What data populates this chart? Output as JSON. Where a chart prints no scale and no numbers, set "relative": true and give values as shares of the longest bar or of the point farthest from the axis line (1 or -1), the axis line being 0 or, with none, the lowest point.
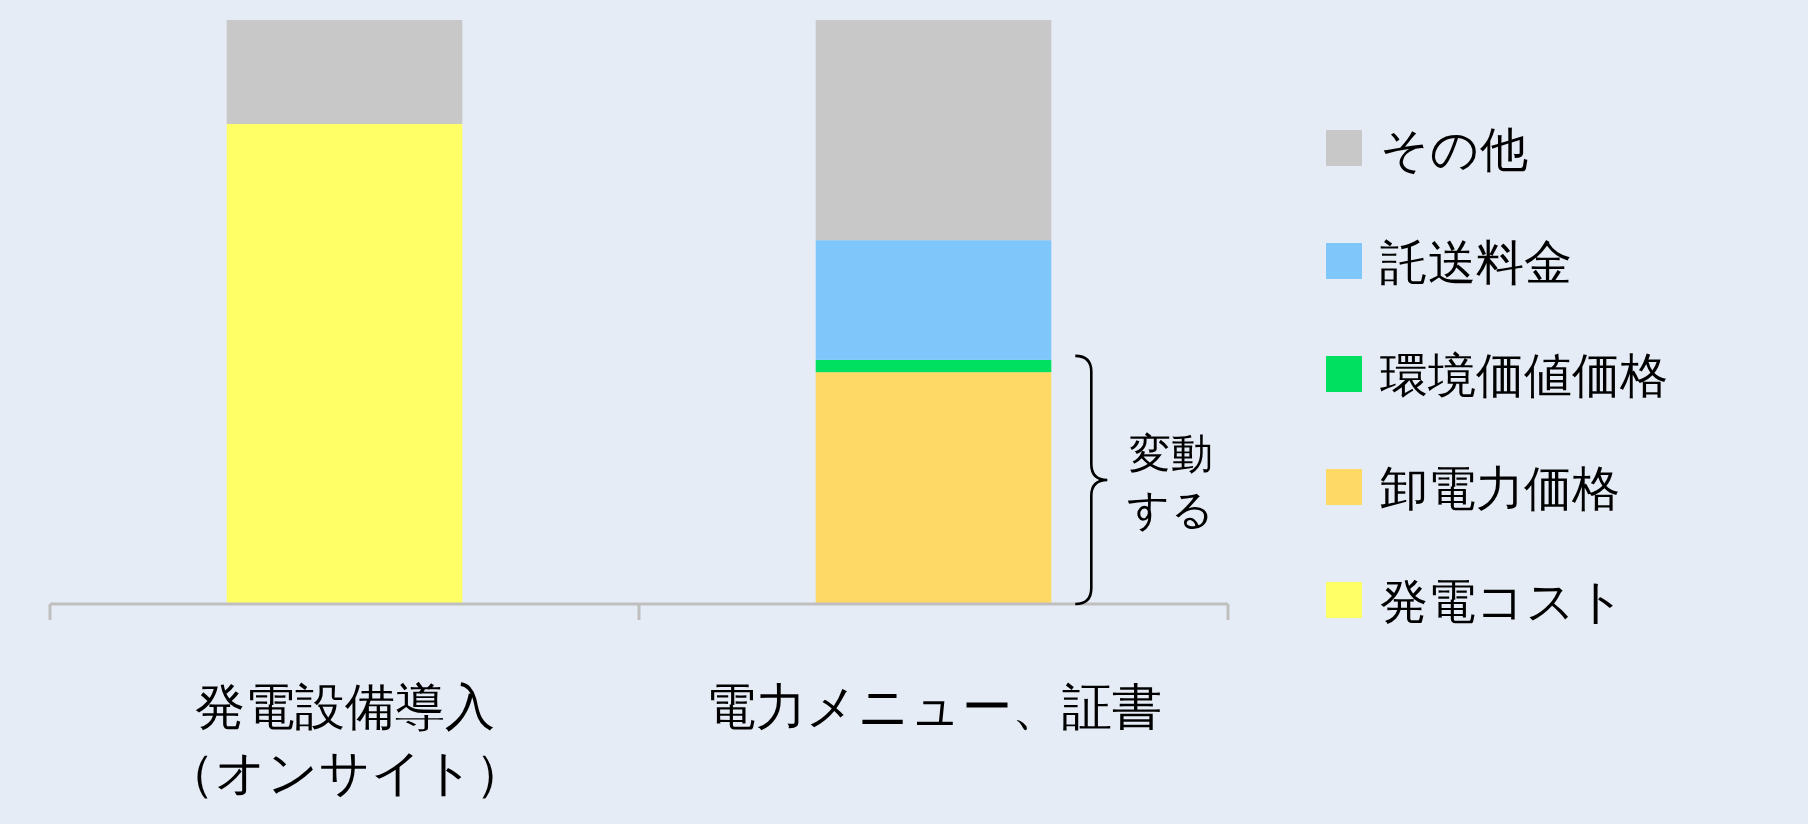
{
  "chart_data": {
    "type": "bar",
    "stacked": true,
    "relative": true,
    "categories": [
      "発電設備導入（オンサイト）",
      "電力メニュー、証書"
    ],
    "series": [
      {
        "name": "発電コスト",
        "color": "#ffff66",
        "values": [
          0.822,
          null
        ]
      },
      {
        "name": "卸電力価格",
        "color": "#ffd966",
        "values": [
          null,
          0.397
        ]
      },
      {
        "name": "環境価値価格",
        "color": "#00e060",
        "values": [
          null,
          0.021
        ]
      },
      {
        "name": "託送料金",
        "color": "#7fc6fb",
        "values": [
          null,
          0.205
        ]
      },
      {
        "name": "その他",
        "color": "#c8c8c8",
        "values": [
          0.178,
          0.377
        ]
      }
    ],
    "legend": "right",
    "annotations": [
      "変動する"
    ]
  }
}
